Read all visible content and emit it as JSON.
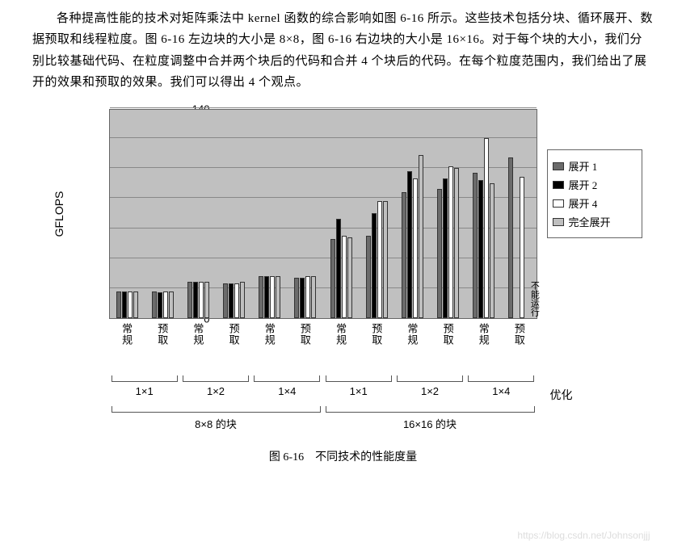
{
  "paragraph": "各种提高性能的技术对矩阵乘法中 kernel 函数的综合影响如图 6-16 所示。这些技术包括分块、循环展开、数据预取和线程粒度。图 6-16 左边块的大小是 8×8，图 6-16 右边块的大小是 16×16。对于每个块的大小，我们分别比较基础代码、在粒度调整中合并两个块后的代码和合并 4 个块后的代码。在每个粒度范围内，我们给出了展开的效果和预取的效果。我们可以得出 4 个观点。",
  "chart": {
    "type": "bar",
    "ylabel": "GFLOPS",
    "ylim": [
      0,
      140
    ],
    "ytick_step": 20,
    "background_color": "#c0c0c0",
    "grid_color": "#888888",
    "series": [
      {
        "label": "展开 1",
        "color": "#6b6b6b"
      },
      {
        "label": "展开 2",
        "color": "#000000"
      },
      {
        "label": "展开 4",
        "color": "#ffffff"
      },
      {
        "label": "完全展开",
        "color": "#bfbfbf"
      }
    ],
    "groups": [
      {
        "cat": "常规",
        "sub": "1×1",
        "block": "8×8 的块",
        "values": [
          18,
          18,
          18,
          18
        ]
      },
      {
        "cat": "预取",
        "sub": "1×1",
        "block": "8×8 的块",
        "values": [
          18,
          17,
          18,
          18
        ]
      },
      {
        "cat": "常规",
        "sub": "1×2",
        "block": "8×8 的块",
        "values": [
          24,
          24,
          24,
          24
        ]
      },
      {
        "cat": "预取",
        "sub": "1×2",
        "block": "8×8 的块",
        "values": [
          23,
          23,
          23,
          24
        ]
      },
      {
        "cat": "常规",
        "sub": "1×4",
        "block": "8×8 的块",
        "values": [
          28,
          28,
          28,
          28
        ]
      },
      {
        "cat": "预取",
        "sub": "1×4",
        "block": "8×8 的块",
        "values": [
          27,
          27,
          28,
          28
        ]
      },
      {
        "cat": "常规",
        "sub": "1×1",
        "block": "16×16 的块",
        "values": [
          53,
          66,
          55,
          54
        ]
      },
      {
        "cat": "预取",
        "sub": "1×1",
        "block": "16×16 的块",
        "values": [
          55,
          70,
          78,
          78
        ]
      },
      {
        "cat": "常规",
        "sub": "1×2",
        "block": "16×16 的块",
        "values": [
          84,
          98,
          93,
          109
        ]
      },
      {
        "cat": "预取",
        "sub": "1×2",
        "block": "16×16 的块",
        "values": [
          86,
          93,
          101,
          100
        ]
      },
      {
        "cat": "常规",
        "sub": "1×4",
        "block": "16×16 的块",
        "values": [
          97,
          92,
          120,
          90
        ]
      },
      {
        "cat": "预取",
        "sub": "1×4",
        "block": "16×16 的块",
        "values": [
          107,
          0,
          94,
          0
        ],
        "annotation": "不能运行"
      }
    ],
    "sub_groups": [
      {
        "label": "1×1",
        "block": "8×8 的块"
      },
      {
        "label": "1×2",
        "block": "8×8 的块"
      },
      {
        "label": "1×4",
        "block": "8×8 的块"
      },
      {
        "label": "1×1",
        "block": "16×16 的块"
      },
      {
        "label": "1×2",
        "block": "16×16 的块"
      },
      {
        "label": "1×4",
        "block": "16×16 的块"
      }
    ],
    "block_groups": [
      "8×8 的块",
      "16×16 的块"
    ],
    "right_label": "优化"
  },
  "caption": "图 6-16　不同技术的性能度量",
  "watermark": "https://blog.csdn.net/Johnsonjjj"
}
